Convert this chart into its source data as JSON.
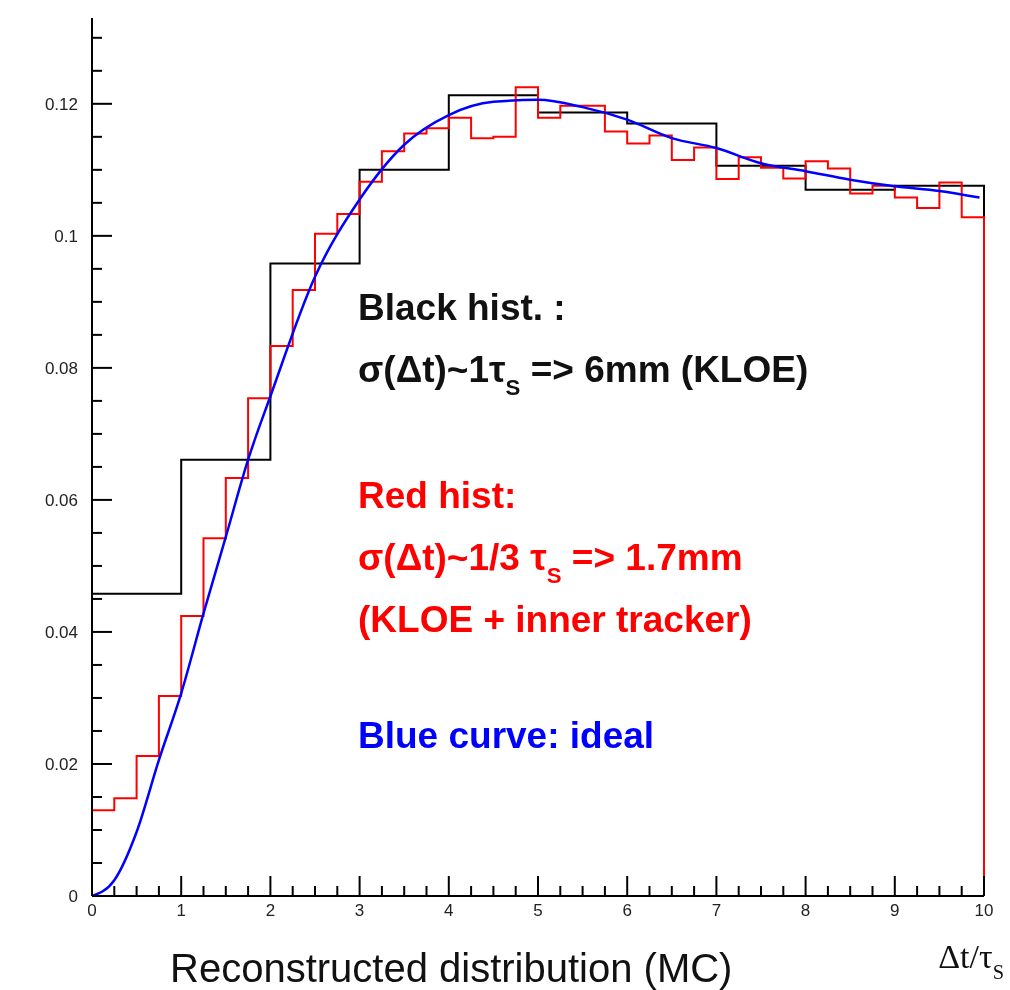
{
  "chart_data": {
    "type": "histogram",
    "xlabel": "Δt/τ$_{S}$",
    "xlim": [
      0,
      10
    ],
    "ylim": [
      0,
      0.133
    ],
    "xticks": [
      0,
      {
        "value": 0.25,
        "label": null
      },
      {
        "value": 0.5,
        "label": null
      },
      {
        "value": 0.75,
        "label": null
      },
      1,
      {
        "value": 1.25,
        "label": null
      },
      {
        "value": 1.5,
        "label": null
      },
      {
        "value": 1.75,
        "label": null
      },
      2,
      {
        "value": 2.25,
        "label": null
      },
      {
        "value": 2.5,
        "label": null
      },
      {
        "value": 2.75,
        "label": null
      },
      3,
      {
        "value": 3.25,
        "label": null
      },
      {
        "value": 3.5,
        "label": null
      },
      {
        "value": 3.75,
        "label": null
      },
      4,
      {
        "value": 4.25,
        "label": null
      },
      {
        "value": 4.5,
        "label": null
      },
      {
        "value": 4.75,
        "label": null
      },
      5,
      {
        "value": 5.25,
        "label": null
      },
      {
        "value": 5.5,
        "label": null
      },
      {
        "value": 5.75,
        "label": null
      },
      6,
      {
        "value": 6.25,
        "label": null
      },
      {
        "value": 6.5,
        "label": null
      },
      {
        "value": 6.75,
        "label": null
      },
      7,
      {
        "value": 7.25,
        "label": null
      },
      {
        "value": 7.5,
        "label": null
      },
      {
        "value": 7.75,
        "label": null
      },
      8,
      {
        "value": 8.25,
        "label": null
      },
      {
        "value": 8.5,
        "label": null
      },
      {
        "value": 8.75,
        "label": null
      },
      9,
      {
        "value": 9.25,
        "label": null
      },
      {
        "value": 9.5,
        "label": null
      },
      {
        "value": 9.75,
        "label": null
      },
      10
    ],
    "yticks": [
      0,
      {
        "value": 0.005,
        "label": null
      },
      {
        "value": 0.01,
        "label": null
      },
      {
        "value": 0.015,
        "label": null
      },
      0.02,
      {
        "value": 0.025,
        "label": null
      },
      {
        "value": 0.03,
        "label": null
      },
      {
        "value": 0.035,
        "label": null
      },
      0.04,
      {
        "value": 0.045,
        "label": null
      },
      {
        "value": 0.05,
        "label": null
      },
      {
        "value": 0.055,
        "label": null
      },
      0.06,
      {
        "value": 0.065,
        "label": null
      },
      {
        "value": 0.07,
        "label": null
      },
      {
        "value": 0.075,
        "label": null
      },
      0.08,
      {
        "value": 0.085,
        "label": null
      },
      {
        "value": 0.09,
        "label": null
      },
      {
        "value": 0.095,
        "label": null
      },
      0.1,
      {
        "value": 0.105,
        "label": null
      },
      {
        "value": 0.11,
        "label": null
      },
      {
        "value": 0.115,
        "label": null
      },
      0.12,
      {
        "value": 0.125,
        "label": null
      },
      {
        "value": 0.13,
        "label": null
      }
    ],
    "grid": false,
    "series": [
      {
        "color": "#000000",
        "bins": [
          0,
          1,
          2,
          3,
          4,
          5,
          6,
          7,
          8,
          9,
          10
        ],
        "values": [
          0.0458,
          0.0661,
          0.0958,
          0.11,
          0.1213,
          0.1187,
          0.117,
          0.1106,
          0.107,
          0.1076
        ]
      },
      {
        "color": "#ff0000",
        "bins": [
          0,
          0.25,
          0.5,
          0.75,
          1,
          1.25,
          1.5,
          1.75,
          2,
          2.25,
          2.5,
          2.75,
          3,
          3.25,
          3.5,
          3.75,
          4,
          4.25,
          4.5,
          4.75,
          5,
          5.25,
          5.5,
          5.75,
          6,
          6.25,
          6.5,
          6.75,
          7,
          7.25,
          7.5,
          7.75,
          8,
          8.25,
          8.5,
          8.75,
          9,
          9.25,
          9.5,
          9.75,
          10
        ],
        "values": [
          0.013,
          0.0148,
          0.0212,
          0.0303,
          0.0424,
          0.0542,
          0.0633,
          0.0754,
          0.0833,
          0.0918,
          0.1003,
          0.1033,
          0.1082,
          0.1128,
          0.1155,
          0.1163,
          0.1179,
          0.1148,
          0.115,
          0.1225,
          0.1179,
          0.1197,
          0.1197,
          0.1158,
          0.114,
          0.1152,
          0.1115,
          0.1134,
          0.1086,
          0.1119,
          0.1103,
          0.1087,
          0.1113,
          0.1102,
          0.1064,
          0.1076,
          0.1058,
          0.1042,
          0.1081,
          0.1028
        ]
      },
      {
        "type": "line",
        "color": "#0000ff",
        "x": [
          0,
          0.25,
          0.5,
          0.75,
          1,
          1.25,
          1.5,
          1.75,
          2,
          2.5,
          3,
          3.5,
          4,
          4.5,
          5,
          5.5,
          6,
          6.5,
          7,
          7.5,
          8,
          8.5,
          9,
          9.5,
          9.95
        ],
        "values": [
          0,
          0.0024,
          0.0097,
          0.0206,
          0.0307,
          0.0428,
          0.0544,
          0.0661,
          0.0757,
          0.0938,
          0.1055,
          0.1138,
          0.1183,
          0.1203,
          0.1206,
          0.1195,
          0.1176,
          0.1148,
          0.1133,
          0.111,
          0.1098,
          0.1085,
          0.1075,
          0.1068,
          0.1058
        ]
      }
    ],
    "annotations": [
      "Black hist. :",
      "σ(Δt)~1τ$_{S}$ => 6mm (KLOE)",
      "Red hist:",
      "σ(Δt)~1/3 τ$_{S}$ => 1.7mm",
      "(KLOE + inner tracker)",
      "Blue curve: ideal",
      "Reconstructed distribution (MC)"
    ]
  }
}
